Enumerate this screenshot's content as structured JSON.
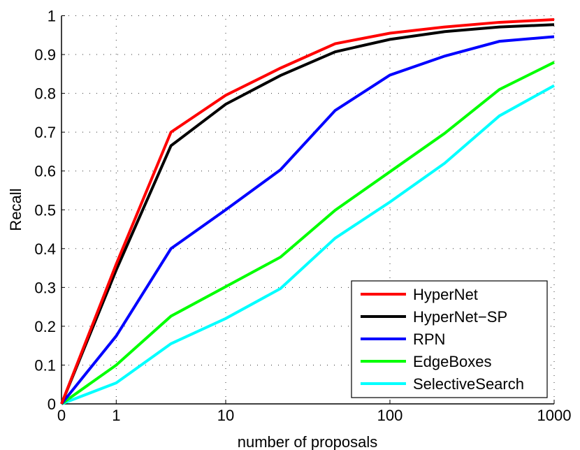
{
  "chart_data": {
    "type": "line",
    "title": "",
    "xlabel": "number of proposals",
    "ylabel": "Recall",
    "x_index": [
      0,
      1,
      2,
      3,
      4,
      5,
      6,
      7,
      8,
      9
    ],
    "x_ticks": [
      {
        "index": 0,
        "label": "0"
      },
      {
        "index": 1,
        "label": "1"
      },
      {
        "index": 3,
        "label": "10"
      },
      {
        "index": 6,
        "label": "100"
      },
      {
        "index": 9,
        "label": "1000"
      }
    ],
    "y_ticks": [
      "0",
      "0.1",
      "0.2",
      "0.3",
      "0.4",
      "0.5",
      "0.6",
      "0.7",
      "0.8",
      "0.9",
      "1"
    ],
    "ylim": [
      0,
      1
    ],
    "grid": true,
    "legend_position": "lower right",
    "series": [
      {
        "name": "HyperNet",
        "color": "#ff0000",
        "values": [
          0.0,
          0.36,
          0.7,
          0.795,
          0.865,
          0.928,
          0.955,
          0.971,
          0.983,
          0.99
        ]
      },
      {
        "name": "HyperNet-SP",
        "color": "#000000",
        "values": [
          0.0,
          0.345,
          0.665,
          0.772,
          0.846,
          0.907,
          0.939,
          0.959,
          0.971,
          0.977
        ]
      },
      {
        "name": "RPN",
        "color": "#0000ff",
        "values": [
          0.0,
          0.175,
          0.4,
          0.5,
          0.603,
          0.756,
          0.847,
          0.896,
          0.934,
          0.946
        ]
      },
      {
        "name": "EdgeBoxes",
        "color": "#00ff00",
        "values": [
          0.0,
          0.1,
          0.226,
          0.302,
          0.378,
          0.499,
          0.598,
          0.697,
          0.81,
          0.88
        ]
      },
      {
        "name": "SelectiveSearch",
        "color": "#00ffff",
        "values": [
          0.0,
          0.054,
          0.155,
          0.22,
          0.297,
          0.427,
          0.52,
          0.62,
          0.742,
          0.82
        ]
      }
    ]
  },
  "labels": {
    "xlabel": "number of proposals",
    "ylabel": "Recall"
  }
}
